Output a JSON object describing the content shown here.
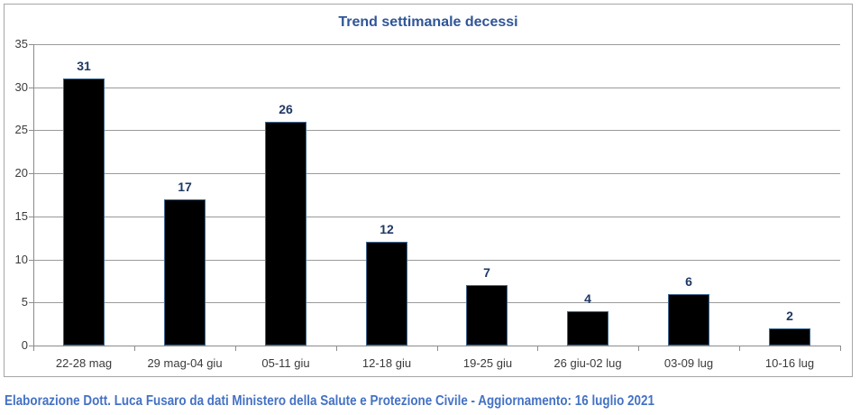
{
  "chart_data": {
    "type": "bar",
    "title": "Trend settimanale decessi",
    "categories": [
      "22-28 mag",
      "29 mag-04 giu",
      "05-11 giu",
      "12-18 giu",
      "19-25 giu",
      "26 giu-02 lug",
      "03-09 lug",
      "10-16 lug"
    ],
    "values": [
      31,
      17,
      26,
      12,
      7,
      4,
      6,
      2
    ],
    "xlabel": "",
    "ylabel": "",
    "ylim": [
      0,
      35
    ],
    "yticks": [
      0,
      5,
      10,
      15,
      20,
      25,
      30,
      35
    ],
    "grid": "horizontal",
    "legend": "none",
    "bar_color": "#000000",
    "bar_border_color": "#3e6991",
    "value_label_color": "#1f3864",
    "title_color": "#2f5597",
    "grid_color": "#9a9a9a",
    "axis_color": "#8c8c8c"
  },
  "footer": {
    "text": "Elaborazione Dott. Luca Fusaro da dati Ministero della Salute e Protezione Civile - Aggiornamento: 16 luglio 2021",
    "color": "#4472c4"
  }
}
